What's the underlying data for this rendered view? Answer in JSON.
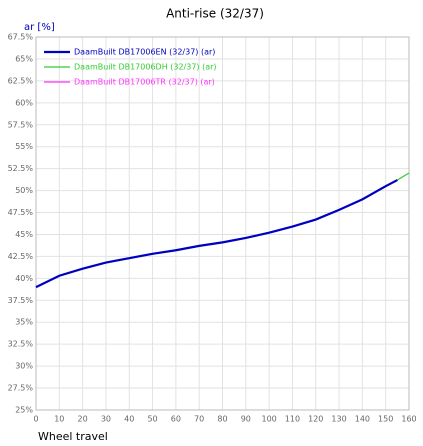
{
  "chart_data": {
    "type": "line",
    "title": "Anti-rise (32/37)",
    "y_label": "ar [%]",
    "x_label": "Wheel travel",
    "x": [
      0,
      10,
      20,
      30,
      40,
      50,
      60,
      70,
      80,
      90,
      100,
      110,
      120,
      130,
      140,
      150,
      155,
      160
    ],
    "series": [
      {
        "name": "DaamBuilt DB17006EN (32/37) (ar)",
        "color": "#0000c0",
        "values": [
          39.0,
          40.3,
          41.1,
          41.8,
          42.3,
          42.8,
          43.2,
          43.7,
          44.1,
          44.6,
          45.2,
          45.9,
          46.7,
          47.8,
          49.0,
          50.5,
          51.2,
          null
        ]
      },
      {
        "name": "DaamBuilt DB17006DH (32/37) (ar)",
        "color": "#33cc33",
        "values": [
          39.0,
          40.3,
          41.1,
          41.8,
          42.3,
          42.8,
          43.2,
          43.7,
          44.1,
          44.6,
          45.2,
          45.9,
          46.7,
          47.8,
          49.0,
          50.5,
          51.2,
          52.0
        ]
      },
      {
        "name": "DaamBuilt DB17006TR (32/37) (ar)",
        "color": "#ff33ff",
        "values": [
          39.0,
          40.3,
          41.1,
          41.8,
          42.3,
          42.8,
          43.2,
          43.7,
          44.1,
          44.6,
          45.2,
          45.9,
          46.7,
          47.8,
          49.0,
          50.5,
          51.2,
          null
        ]
      }
    ],
    "xlim": [
      0,
      160
    ],
    "xticks": [
      0,
      10,
      20,
      30,
      40,
      50,
      60,
      70,
      80,
      90,
      100,
      110,
      120,
      130,
      140,
      150,
      160
    ],
    "ylim": [
      25,
      67.5
    ],
    "yticks": [
      {
        "value": 25,
        "label": "25%"
      },
      {
        "value": 27.5,
        "label": "27.5%"
      },
      {
        "value": 30,
        "label": "30%"
      },
      {
        "value": 32.5,
        "label": "32.5%"
      },
      {
        "value": 35,
        "label": "35%"
      },
      {
        "value": 37.5,
        "label": "37.5%"
      },
      {
        "value": 40,
        "label": "40%"
      },
      {
        "value": 42.5,
        "label": "42.5%"
      },
      {
        "value": 45,
        "label": "45%"
      },
      {
        "value": 47.5,
        "label": "47.5%"
      },
      {
        "value": 50,
        "label": "50%"
      },
      {
        "value": 52.5,
        "label": "52.5%"
      },
      {
        "value": 55,
        "label": "55%"
      },
      {
        "value": 57.5,
        "label": "57.5%"
      },
      {
        "value": 60,
        "label": "60%"
      },
      {
        "value": 62.5,
        "label": "62.5%"
      },
      {
        "value": 65,
        "label": "65%"
      },
      {
        "value": 67.5,
        "label": "67.5%"
      }
    ],
    "grid": true,
    "legend": "upper-left"
  }
}
